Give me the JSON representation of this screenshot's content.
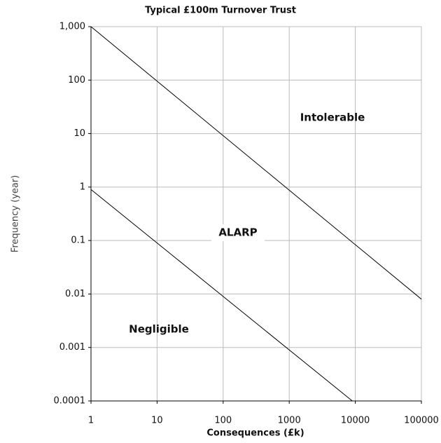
{
  "chart_data": {
    "type": "line",
    "title": "Typical £100m Turnover Trust",
    "x_label": "Consequences (£k)",
    "y_label": "Frequency (year)",
    "log_x": true,
    "log_y": true,
    "grid": true,
    "xlim": [
      1,
      100000
    ],
    "xticks": [
      1,
      10,
      100,
      1000,
      10000,
      100000
    ],
    "ylim": [
      0.0001,
      1000
    ],
    "yticks": [
      0.0001,
      0.001,
      0.01,
      0.1,
      1,
      10,
      100,
      {
        "value": 1000,
        "label": "1,000"
      }
    ],
    "series": [
      {
        "color": "#000000",
        "x": [
          1,
          100000
        ],
        "values": [
          1000,
          0.008
        ]
      },
      {
        "color": "#000000",
        "x": [
          1,
          9000
        ],
        "values": [
          0.9,
          0.0001
        ]
      }
    ],
    "annotations": [
      "Intolerable",
      "ALARP",
      "Negligible"
    ]
  }
}
